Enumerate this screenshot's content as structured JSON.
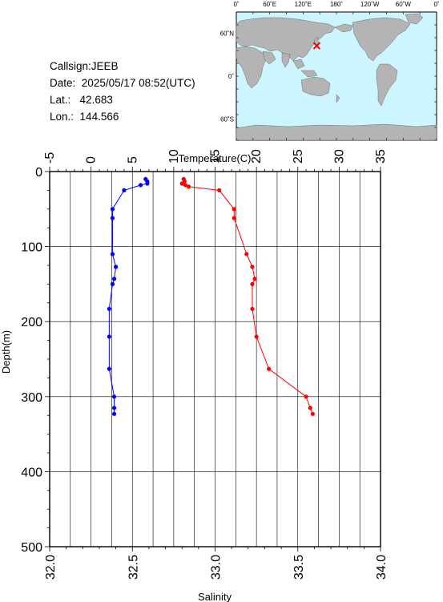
{
  "info": {
    "callsign_label": "Callsign:",
    "callsign": "JEEB",
    "date_label": "Date:",
    "date": "2025/05/17 08:52(UTC)",
    "lat_label": "Lat.:",
    "lat": "42.683",
    "lon_label": "Lon.:",
    "lon": "144.566"
  },
  "map": {
    "top_labels": [
      "0˚",
      "60˚E",
      "120˚E",
      "180˚",
      "120˚W",
      "60˚W",
      "0˚"
    ],
    "left_labels": [
      "60˚N",
      "0˚",
      "60˚S"
    ],
    "ocean_color": "#cdf5ff",
    "land_color": "#b4b4b4",
    "marker": {
      "lon": 144.566,
      "lat": 42.683,
      "color": "#ff0000"
    }
  },
  "chart_data": {
    "type": "line",
    "x_top": {
      "label": "Temperature(C)",
      "range": [
        -5,
        35
      ],
      "ticks": [
        -5,
        0,
        5,
        10,
        15,
        20,
        25,
        30,
        35
      ]
    },
    "x_bottom": {
      "label": "Salinity",
      "range": [
        32.0,
        34.0
      ],
      "ticks": [
        "32.0",
        "32.5",
        "33.0",
        "33.5",
        "34.0"
      ]
    },
    "y": {
      "label": "Depth(m)",
      "range": [
        0,
        500
      ],
      "inverted": true,
      "ticks": [
        0,
        100,
        200,
        300,
        400,
        500
      ]
    },
    "grid": true,
    "series": [
      {
        "axis": "temperature",
        "color": "#ff0000",
        "points": [
          [
            11.2,
            10
          ],
          [
            11.3,
            13
          ],
          [
            11.0,
            16
          ],
          [
            11.4,
            18
          ],
          [
            11.8,
            20
          ],
          [
            15.5,
            25
          ],
          [
            17.3,
            50
          ],
          [
            17.3,
            62
          ],
          [
            18.8,
            110
          ],
          [
            19.5,
            127
          ],
          [
            19.8,
            143
          ],
          [
            19.5,
            150
          ],
          [
            19.5,
            183
          ],
          [
            20.0,
            220
          ],
          [
            21.5,
            263
          ],
          [
            26.0,
            300
          ],
          [
            26.5,
            315
          ],
          [
            26.8,
            323
          ]
        ]
      },
      {
        "axis": "salinity",
        "color": "#0000ff",
        "points": [
          [
            32.58,
            10
          ],
          [
            32.59,
            13
          ],
          [
            32.59,
            16
          ],
          [
            32.55,
            18
          ],
          [
            32.45,
            25
          ],
          [
            32.38,
            50
          ],
          [
            32.38,
            62
          ],
          [
            32.38,
            110
          ],
          [
            32.4,
            127
          ],
          [
            32.39,
            143
          ],
          [
            32.38,
            150
          ],
          [
            32.36,
            183
          ],
          [
            32.36,
            220
          ],
          [
            32.36,
            263
          ],
          [
            32.39,
            300
          ],
          [
            32.39,
            315
          ],
          [
            32.39,
            323
          ]
        ]
      }
    ]
  }
}
